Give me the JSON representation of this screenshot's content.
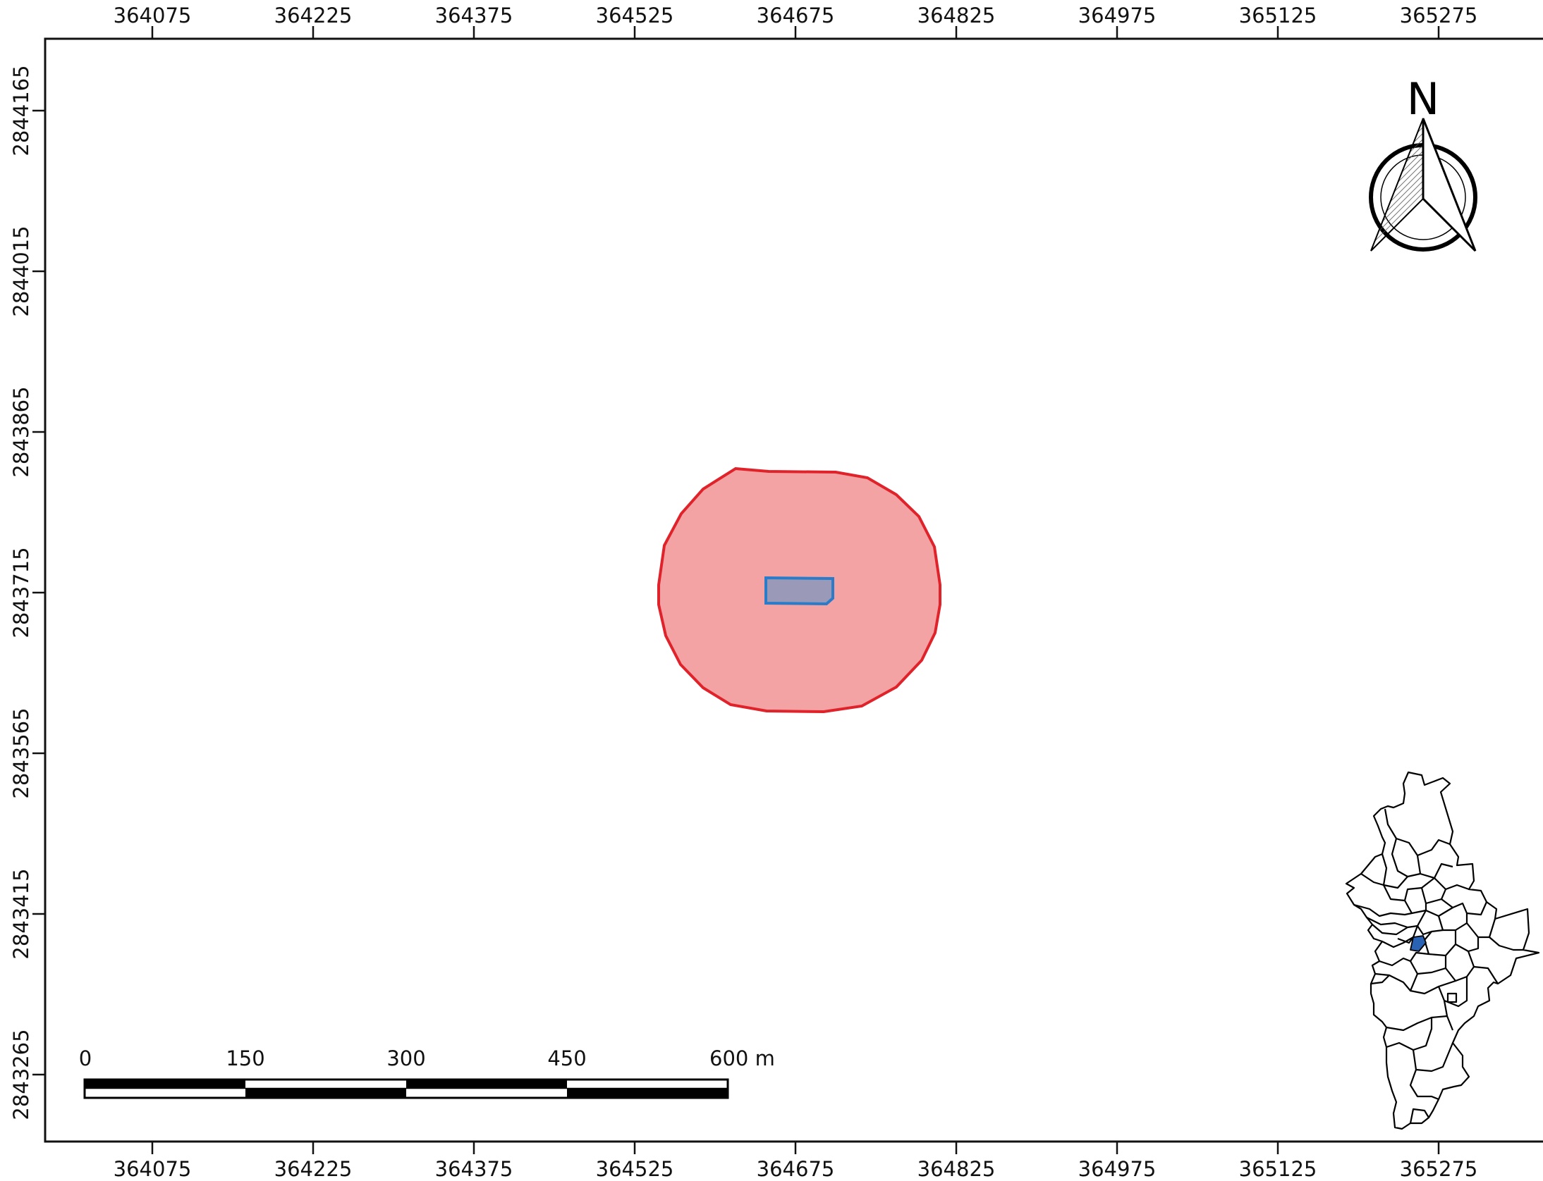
{
  "map": {
    "x_ticks": [
      "364075",
      "364225",
      "364375",
      "364525",
      "364675",
      "364825",
      "364975",
      "365125",
      "365275"
    ],
    "y_ticks": [
      "2844165",
      "2844015",
      "2843865",
      "2843715",
      "2843565",
      "2843415",
      "2843265"
    ]
  },
  "layers": {
    "buffer": {
      "fill": "#f3a3a4",
      "stroke": "#e0232b"
    },
    "parcel": {
      "fill": "#9a9ab8",
      "stroke": "#2a7bc8"
    }
  },
  "scale_bar": {
    "labels": [
      "0",
      "150",
      "300",
      "450",
      "600 m"
    ]
  },
  "north_arrow": {
    "label": "N",
    "icon": "north-arrow-icon"
  },
  "inset_map": {
    "icon": "state-municipalities-inset",
    "highlight_color": "#2b63b4"
  }
}
